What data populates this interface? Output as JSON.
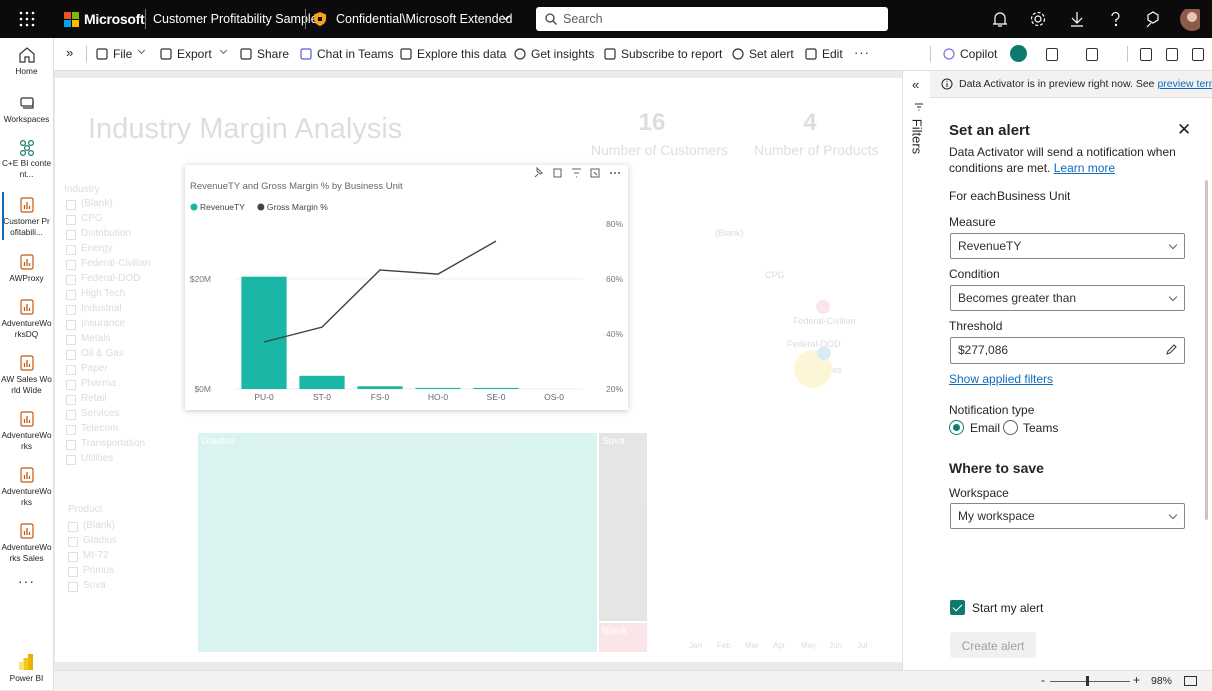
{
  "top_bar": {
    "brand": "Microsoft",
    "report_name": "Customer Profitability Sample",
    "sensitivity": "Confidential\\Microsoft Extended",
    "search_placeholder": "Search"
  },
  "nav": [
    "Home",
    "Workspaces",
    "C+E BI content...",
    "Customer Profitabili...",
    "AWProxy",
    "AdventureWorksDQ",
    "AW Sales World Wide",
    "AdventureWorks",
    "AdventureWorks",
    "AdventureWorks Sales",
    "Power BI"
  ],
  "toolbar": [
    "File",
    "Export",
    "Share",
    "Chat in Teams",
    "Explore this data",
    "Get insights",
    "Subscribe to report",
    "Set alert",
    "Edit",
    "Copilot"
  ],
  "report_background": {
    "title": "Industry Margin Analysis",
    "kpis": [
      {
        "value": 16,
        "label": "Number of Customers"
      },
      {
        "value": 4,
        "label": "Number of Products"
      }
    ],
    "industry_slicer": {
      "title": "Industry",
      "items": [
        "(Blank)",
        "CPG",
        "Distribution",
        "Energy",
        "Federal-Civilian",
        "Federal-DOD",
        "High Tech",
        "Industrial",
        "Insurance",
        "Metals",
        "Oil & Gas",
        "Paper",
        "Pharma",
        "Retail",
        "Services",
        "Telecom",
        "Transportation",
        "Utilities"
      ]
    },
    "product_slicer": {
      "title": "Product",
      "items": [
        "(Blank)",
        "Gladius",
        "MI-72",
        "Primus",
        "Sova"
      ]
    },
    "treemap_labels": [
      "Gladius",
      "Sova",
      "Blank"
    ],
    "scatter_labels": [
      "(Blank)",
      "CPG",
      "Federal-Civilian",
      "Federal-DOD",
      "Services"
    ],
    "months": [
      "Jan",
      "Feb",
      "Mar",
      "Apr",
      "May",
      "Jun",
      "Jul"
    ]
  },
  "chart": {
    "type": "combo",
    "title": "RevenueTY and Gross Margin % by Business Unit",
    "categories": [
      "PU-0",
      "ST-0",
      "FS-0",
      "HO-0",
      "SE-0",
      "OS-0"
    ],
    "series": [
      {
        "name": "RevenueTY",
        "color": "#1ab7a6",
        "type": "bar",
        "values": [
          20.4,
          2.4,
          0.5,
          0.2,
          0.2,
          0
        ]
      },
      {
        "name": "Gross Margin %",
        "color": "#374649",
        "type": "line",
        "axis": "y2",
        "values": [
          37.1,
          42.5,
          63.3,
          61.8,
          73.8,
          null
        ]
      }
    ],
    "ylim": [
      0,
      31.6
    ],
    "yticks": [
      {
        "value": 0,
        "label": "$0M"
      },
      {
        "value": 20,
        "label": "$20M"
      }
    ],
    "y2lim": [
      20,
      83.3
    ],
    "y2ticks": [
      {
        "value": 20,
        "label": "20%"
      },
      {
        "value": 40,
        "label": "40%"
      },
      {
        "value": 60,
        "label": "60%"
      },
      {
        "value": 80,
        "label": "80%"
      }
    ],
    "grid": true
  },
  "filters_label": "Filters",
  "alert_panel": {
    "info": "Data Activator is in preview right now. See",
    "info_link": "preview terms",
    "title": "Set an alert",
    "description": "Data Activator will send a notification when conditions are met.",
    "learn_more": "Learn more",
    "for_each_label": "For each",
    "for_each_value": "Business Unit",
    "measure_label": "Measure",
    "measure_value": "RevenueTY",
    "condition_label": "Condition",
    "condition_value": "Becomes greater than",
    "threshold_label": "Threshold",
    "threshold_value": "$277,086",
    "show_filters": "Show applied filters",
    "notification_label": "Notification type",
    "email": "Email",
    "teams": "Teams",
    "where_title": "Where to save",
    "workspace_label": "Workspace",
    "workspace_value": "My workspace",
    "start": "Start my alert",
    "create": "Create alert"
  },
  "status_bar": {
    "zoom": "98%"
  }
}
